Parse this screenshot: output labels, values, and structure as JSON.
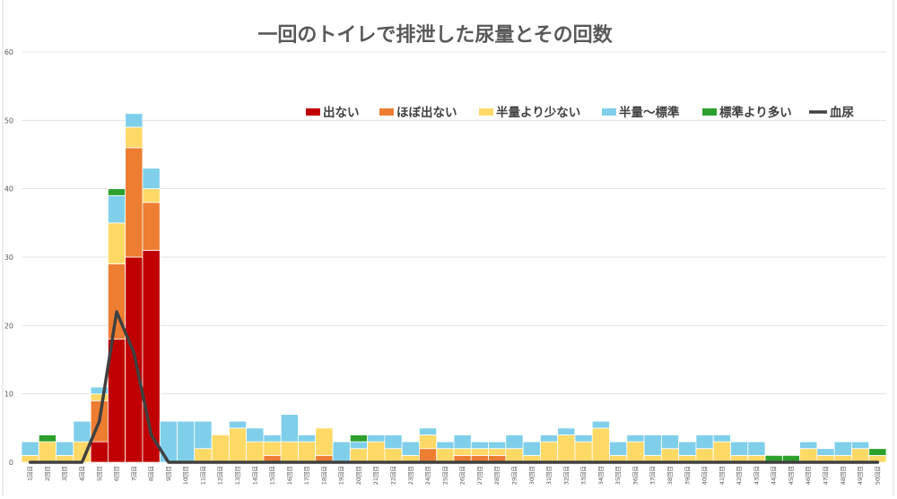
{
  "chart_data": {
    "type": "bar",
    "title": "一回のトイレで排泄した尿量とその回数",
    "ylim": [
      0,
      60
    ],
    "yticks": [
      0,
      10,
      20,
      30,
      40,
      50,
      60
    ],
    "grid": true,
    "legend_position": "top-right",
    "categories": [
      "1",
      "2",
      "3",
      "4",
      "5",
      "6",
      "7",
      "8",
      "9",
      "10",
      "11",
      "12",
      "13",
      "14",
      "15",
      "16",
      "17",
      "18",
      "19",
      "20",
      "21",
      "22",
      "23",
      "24",
      "25",
      "26",
      "27",
      "28",
      "29",
      "30",
      "31",
      "32",
      "33",
      "34",
      "35",
      "36",
      "37",
      "38",
      "39",
      "40",
      "41",
      "42",
      "43",
      "44",
      "45",
      "46",
      "47",
      "48",
      "49",
      "50"
    ],
    "category_suffix": "回目",
    "series": [
      {
        "name": "出ない",
        "color": "#c00000",
        "kind": "bar",
        "values": [
          0,
          0,
          0,
          0,
          3,
          18,
          30,
          31,
          0,
          0,
          0,
          0,
          0,
          0,
          0,
          0,
          0,
          0,
          0,
          0,
          0,
          0,
          0,
          0,
          0,
          0,
          0,
          0,
          0,
          0,
          0,
          0,
          0,
          0,
          0,
          0,
          0,
          0,
          0,
          0,
          0,
          0,
          0,
          0,
          0,
          0,
          0,
          0,
          0,
          0
        ]
      },
      {
        "name": "ほぼ出ない",
        "color": "#ed7d31",
        "kind": "bar",
        "values": [
          0,
          0,
          0,
          0,
          6,
          11,
          16,
          7,
          0,
          0,
          0,
          0,
          0,
          0,
          1,
          0,
          0,
          1,
          0,
          0,
          0,
          0,
          0,
          2,
          0,
          1,
          1,
          1,
          0,
          0,
          0,
          0,
          0,
          0,
          0,
          0,
          0,
          0,
          0,
          0,
          0,
          0,
          0,
          0,
          0,
          0,
          0,
          0,
          0,
          0
        ]
      },
      {
        "name": "半量より少ない",
        "color": "#ffd966",
        "kind": "bar",
        "values": [
          1,
          3,
          1,
          3,
          1,
          6,
          3,
          2,
          0,
          0,
          2,
          4,
          5,
          3,
          2,
          3,
          3,
          4,
          0,
          2,
          3,
          2,
          1,
          2,
          2,
          1,
          1,
          1,
          2,
          1,
          3,
          4,
          3,
          5,
          1,
          3,
          1,
          2,
          1,
          2,
          3,
          1,
          1,
          0,
          0,
          2,
          1,
          1,
          2,
          1
        ]
      },
      {
        "name": "半量～標準",
        "color": "#7fcfea",
        "kind": "bar",
        "values": [
          2,
          0,
          2,
          3,
          1,
          4,
          2,
          3,
          6,
          6,
          4,
          0,
          1,
          2,
          1,
          4,
          1,
          0,
          3,
          1,
          1,
          2,
          2,
          1,
          1,
          2,
          1,
          1,
          2,
          2,
          1,
          1,
          1,
          1,
          2,
          1,
          3,
          2,
          2,
          2,
          1,
          2,
          2,
          0,
          0,
          1,
          1,
          2,
          1,
          0
        ]
      },
      {
        "name": "標準より多い",
        "color": "#2ca02c",
        "kind": "bar",
        "values": [
          0,
          1,
          0,
          0,
          0,
          1,
          0,
          0,
          0,
          0,
          0,
          0,
          0,
          0,
          0,
          0,
          0,
          0,
          0,
          1,
          0,
          0,
          0,
          0,
          0,
          0,
          0,
          0,
          0,
          0,
          0,
          0,
          0,
          0,
          0,
          0,
          0,
          0,
          0,
          0,
          0,
          0,
          0,
          1,
          1,
          0,
          0,
          0,
          0,
          1
        ]
      },
      {
        "name": "血尿",
        "color": "#404040",
        "kind": "line",
        "values": [
          0,
          0,
          0,
          0,
          6,
          22,
          16,
          4,
          0,
          0,
          0,
          0,
          0,
          0,
          0,
          0,
          0,
          0,
          0,
          0,
          0,
          0,
          0,
          0,
          0,
          0,
          0,
          0,
          0,
          0,
          0,
          0,
          0,
          0,
          0,
          0,
          0,
          0,
          0,
          0,
          0,
          0,
          0,
          0,
          0,
          0,
          0,
          0,
          0,
          0
        ]
      }
    ]
  }
}
